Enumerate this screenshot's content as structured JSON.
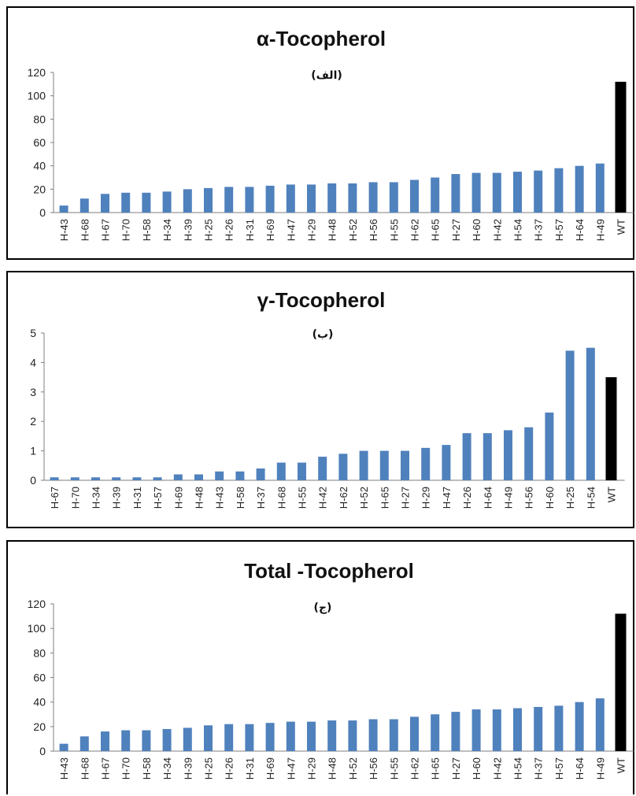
{
  "colors": {
    "bar": "#4F81BD",
    "wt_bar": "#000000",
    "axis": "#7f7f7f"
  },
  "chart_data": [
    {
      "type": "bar",
      "title": "α-Tocopherol",
      "subtitle": "(الف)",
      "ylim": [
        0,
        120
      ],
      "yticks": [
        "0",
        "20",
        "40",
        "60",
        "80",
        "100",
        "120"
      ],
      "categories": [
        "H-43",
        "H-68",
        "H-67",
        "H-70",
        "H-58",
        "H-34",
        "H-39",
        "H-25",
        "H-26",
        "H-31",
        "H-69",
        "H-47",
        "H-29",
        "H-48",
        "H-52",
        "H-56",
        "H-55",
        "H-62",
        "H-65",
        "H-27",
        "H-60",
        "H-42",
        "H-54",
        "H-37",
        "H-57",
        "H-64",
        "H-49",
        "WT"
      ],
      "values": [
        6,
        12,
        16,
        17,
        17,
        18,
        20,
        21,
        22,
        22,
        23,
        24,
        24,
        25,
        25,
        26,
        26,
        28,
        30,
        33,
        34,
        34,
        35,
        36,
        38,
        40,
        42,
        112
      ],
      "grid": false,
      "legend": "none"
    },
    {
      "type": "bar",
      "title": "γ-Tocopherol",
      "subtitle": "(ب)",
      "ylim": [
        0,
        5
      ],
      "yticks": [
        "0",
        "1",
        "2",
        "3",
        "4",
        "5"
      ],
      "categories": [
        "H-67",
        "H-70",
        "H-34",
        "H-39",
        "H-31",
        "H-57",
        "H-69",
        "H-48",
        "H-43",
        "H-58",
        "H-37",
        "H-68",
        "H-55",
        "H-42",
        "H-62",
        "H-52",
        "H-65",
        "H-27",
        "H-29",
        "H-47",
        "H-26",
        "H-64",
        "H-49",
        "H-56",
        "H-60",
        "H-25",
        "H-54",
        "WT"
      ],
      "values": [
        0.1,
        0.1,
        0.1,
        0.1,
        0.1,
        0.1,
        0.2,
        0.2,
        0.3,
        0.3,
        0.4,
        0.6,
        0.6,
        0.8,
        0.9,
        1.0,
        1.0,
        1.0,
        1.1,
        1.2,
        1.6,
        1.6,
        1.7,
        1.8,
        2.3,
        4.4,
        4.5,
        3.5
      ],
      "grid": false,
      "legend": "none"
    },
    {
      "type": "bar",
      "title": "Total -Tocopherol",
      "subtitle": "(ج)",
      "ylim": [
        0,
        120
      ],
      "yticks": [
        "0",
        "20",
        "40",
        "60",
        "80",
        "100",
        "120"
      ],
      "categories": [
        "H-43",
        "H-68",
        "H-67",
        "H-70",
        "H-58",
        "H-34",
        "H-39",
        "H-25",
        "H-26",
        "H-31",
        "H-69",
        "H-47",
        "H-29",
        "H-48",
        "H-52",
        "H-56",
        "H-55",
        "H-62",
        "H-65",
        "H-27",
        "H-60",
        "H-42",
        "H-54",
        "H-37",
        "H-57",
        "H-64",
        "H-49",
        "WT"
      ],
      "values": [
        6,
        12,
        16,
        17,
        17,
        18,
        19,
        21,
        22,
        22,
        23,
        24,
        24,
        25,
        25,
        26,
        26,
        28,
        30,
        32,
        34,
        34,
        35,
        36,
        37,
        40,
        43,
        112
      ],
      "grid": false,
      "legend": "none"
    }
  ]
}
